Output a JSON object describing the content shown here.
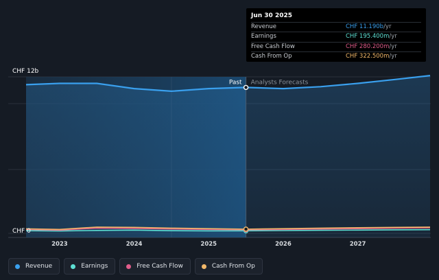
{
  "chart_data": {
    "type": "line",
    "y_axis_labels": {
      "top": "CHF 12b",
      "bottom": "CHF 0"
    },
    "ylim": [
      0,
      12000000000
    ],
    "xlim": [
      2022.55,
      2027.97
    ],
    "x_ticks": [
      "2023",
      "2024",
      "2025",
      "2026",
      "2027"
    ],
    "x_tick_values": [
      2023,
      2024,
      2025,
      2026,
      2027
    ],
    "divider_x": 2025.5,
    "past_label": "Past",
    "forecast_label": "Analysts Forecasts",
    "grid": true,
    "series": [
      {
        "name": "Revenue",
        "color": "#3aa0ee",
        "x": [
          2022.55,
          2023.0,
          2023.5,
          2024.0,
          2024.5,
          2025.0,
          2025.5,
          2026.0,
          2026.5,
          2027.0,
          2027.5,
          2027.97
        ],
        "values": [
          11.4,
          11.5,
          11.5,
          11.1,
          10.9,
          11.1,
          11.19,
          11.1,
          11.25,
          11.5,
          11.8,
          12.1
        ]
      },
      {
        "name": "Earnings",
        "color": "#5ee0d4",
        "x": [
          2022.55,
          2023.0,
          2023.5,
          2024.0,
          2024.5,
          2025.0,
          2025.5,
          2026.0,
          2026.5,
          2027.0,
          2027.5,
          2027.97
        ],
        "values": [
          0.2,
          0.18,
          0.22,
          0.25,
          0.2,
          0.19,
          0.1954,
          0.21,
          0.23,
          0.25,
          0.27,
          0.28
        ]
      },
      {
        "name": "Free Cash Flow",
        "color": "#e05c8a",
        "x": [
          2022.55,
          2023.0,
          2023.5,
          2024.0,
          2024.5,
          2025.0,
          2025.5,
          2026.0,
          2026.5,
          2027.0,
          2027.5,
          2027.97
        ],
        "values": [
          0.3,
          0.25,
          0.4,
          0.38,
          0.33,
          0.3,
          0.2802,
          0.3,
          0.33,
          0.36,
          0.4,
          0.42
        ]
      },
      {
        "name": "Cash From Op",
        "color": "#f2b86a",
        "x": [
          2022.55,
          2023.0,
          2023.5,
          2024.0,
          2024.5,
          2025.0,
          2025.5,
          2026.0,
          2026.5,
          2027.0,
          2027.5,
          2027.97
        ],
        "values": [
          0.35,
          0.3,
          0.48,
          0.46,
          0.4,
          0.36,
          0.3225,
          0.36,
          0.4,
          0.43,
          0.46,
          0.48
        ]
      }
    ]
  },
  "tooltip": {
    "date": "Jun 30 2025",
    "rows": [
      {
        "label": "Revenue",
        "value": "CHF 11.190b",
        "unit": " /yr",
        "color": "#3aa0ee"
      },
      {
        "label": "Earnings",
        "value": "CHF 195.400m",
        "unit": " /yr",
        "color": "#5ee0d4"
      },
      {
        "label": "Free Cash Flow",
        "value": "CHF 280.200m",
        "unit": " /yr",
        "color": "#e05c8a"
      },
      {
        "label": "Cash From Op",
        "value": "CHF 322.500m",
        "unit": " /yr",
        "color": "#f2b86a"
      }
    ]
  },
  "legend": [
    {
      "label": "Revenue",
      "color": "#3aa0ee"
    },
    {
      "label": "Earnings",
      "color": "#5ee0d4"
    },
    {
      "label": "Free Cash Flow",
      "color": "#e05c8a"
    },
    {
      "label": "Cash From Op",
      "color": "#f2b86a"
    }
  ]
}
